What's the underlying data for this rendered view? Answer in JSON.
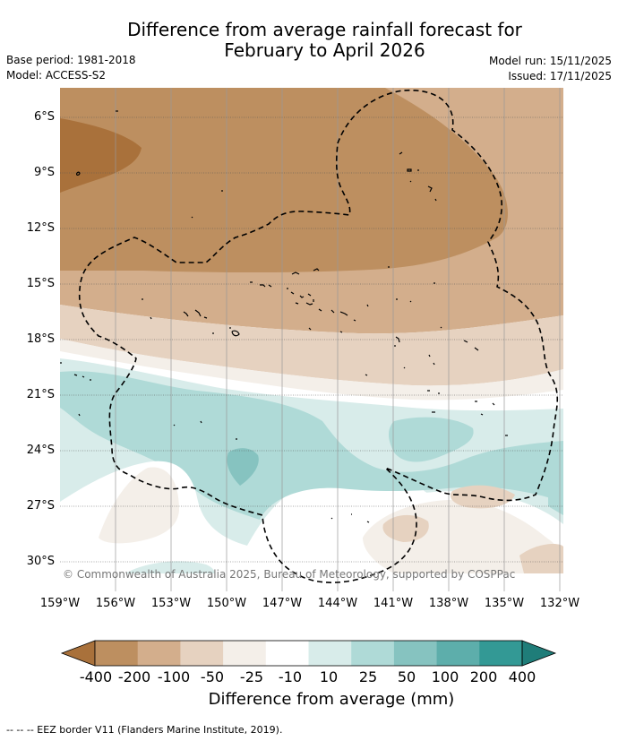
{
  "title": {
    "line1": "Difference from average rainfall forecast for",
    "line2": "February to April 2026"
  },
  "meta": {
    "base_period": "Base period: 1981-2018",
    "model": "Model: ACCESS-S2",
    "model_run": "Model run: 15/11/2025",
    "issued": "Issued: 17/11/2025"
  },
  "map": {
    "lat_labels": [
      "6°S",
      "9°S",
      "12°S",
      "15°S",
      "18°S",
      "21°S",
      "24°S",
      "27°S",
      "30°S"
    ],
    "lon_labels": [
      "159°W",
      "156°W",
      "153°W",
      "150°W",
      "147°W",
      "144°W",
      "141°W",
      "138°W",
      "135°W",
      "132°W"
    ],
    "copyright": "© Commonwealth of Australia 2025, Bureau of Meteorology, supported by COSPPac"
  },
  "legend": {
    "tick_labels": [
      "-400",
      "-200",
      "-100",
      "-50",
      "-25",
      "-10",
      "10",
      "25",
      "50",
      "100",
      "200",
      "400"
    ],
    "title": "Difference from average (mm)",
    "colors": [
      "#a9713b",
      "#bd8f60",
      "#d3ae8c",
      "#e6d2c0",
      "#f4efe9",
      "#ffffff",
      "#d8ecea",
      "#afdad7",
      "#86c3c0",
      "#5daeab",
      "#339995",
      "#1f7d79"
    ]
  },
  "footer": {
    "eez_note": "--  --  -- EEZ border V11 (Flanders Marine Institute, 2019)."
  }
}
